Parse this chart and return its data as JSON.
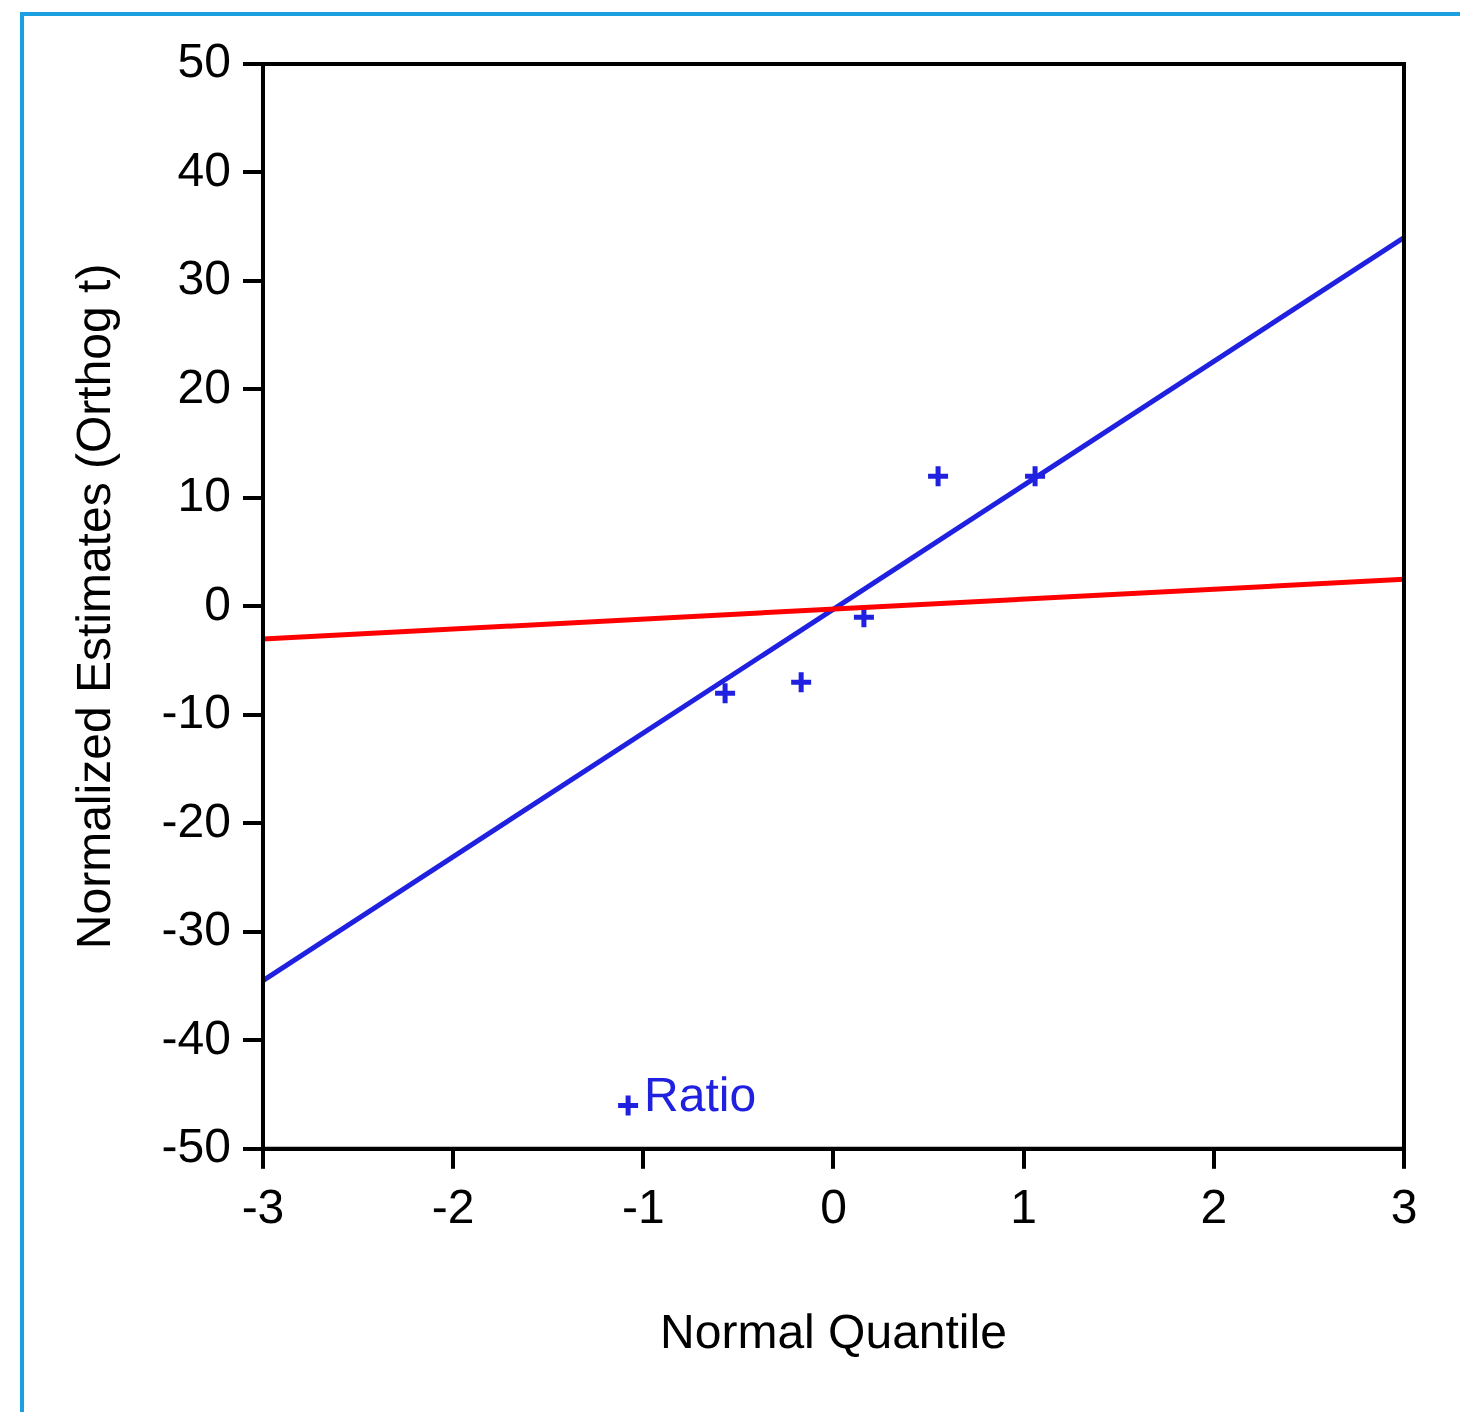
{
  "chart_data": {
    "type": "scatter",
    "xlabel": "Normal Quantile",
    "ylabel": "Normalized Estimates (Orthog t)",
    "xlim": [
      -3,
      3
    ],
    "xticks": [
      -3,
      -2,
      -1,
      0,
      1,
      2,
      3
    ],
    "ylim": [
      -50,
      50
    ],
    "yticks": [
      -50,
      -40,
      -30,
      -20,
      -10,
      0,
      10,
      20,
      30,
      40,
      50
    ],
    "grid": false,
    "legend": false,
    "series": [
      {
        "type": "line",
        "marker": "none",
        "color": "#ff0000",
        "x": [
          -3,
          3
        ],
        "values": [
          -3,
          2.5
        ]
      },
      {
        "type": "line",
        "marker": "none",
        "color": "#2020e0",
        "x": [
          -3,
          3
        ],
        "values": [
          -34.5,
          34
        ]
      },
      {
        "marker": "cross",
        "color": "#2020e0",
        "x": [
          -1.08,
          -0.57,
          -0.17,
          0.16,
          0.55,
          1.06
        ],
        "values": [
          -46,
          -8,
          -7,
          -1,
          12,
          12
        ]
      }
    ],
    "annotations": [
      {
        "text": "Ratio",
        "x": -1.08,
        "y": -46
      }
    ]
  }
}
